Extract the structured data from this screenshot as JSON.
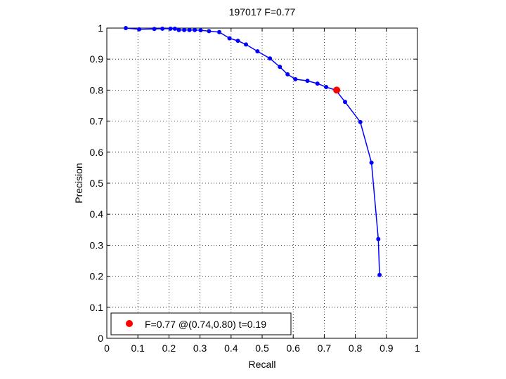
{
  "chart_data": {
    "type": "line",
    "title": "197017 F=0.77",
    "xlabel": "Recall",
    "ylabel": "Precision",
    "xlim": [
      0,
      1
    ],
    "ylim": [
      0,
      1
    ],
    "grid": true,
    "legend_position": "bottom-left",
    "x_ticks": [
      "0",
      "0.1",
      "0.2",
      "0.3",
      "0.4",
      "0.5",
      "0.6",
      "0.7",
      "0.8",
      "0.9",
      "1"
    ],
    "y_ticks": [
      "0",
      "0.1",
      "0.2",
      "0.3",
      "0.4",
      "0.5",
      "0.6",
      "0.7",
      "0.8",
      "0.9",
      "1"
    ],
    "series": [
      {
        "color": "#0000ff",
        "x": [
          0.061,
          0.104,
          0.153,
          0.179,
          0.205,
          0.219,
          0.232,
          0.249,
          0.266,
          0.283,
          0.302,
          0.329,
          0.362,
          0.395,
          0.422,
          0.448,
          0.485,
          0.525,
          0.557,
          0.582,
          0.607,
          0.646,
          0.678,
          0.706,
          0.737,
          0.767,
          0.816,
          0.852,
          0.874,
          0.878
        ],
        "y": [
          1.0,
          0.996,
          0.997,
          0.998,
          0.998,
          0.998,
          0.994,
          0.994,
          0.994,
          0.994,
          0.993,
          0.99,
          0.987,
          0.967,
          0.959,
          0.947,
          0.925,
          0.902,
          0.875,
          0.851,
          0.835,
          0.83,
          0.821,
          0.81,
          0.8,
          0.762,
          0.697,
          0.566,
          0.32,
          0.204
        ]
      }
    ],
    "highlight_point": {
      "x": 0.74,
      "y": 0.8,
      "color": "#ff0000"
    },
    "legend_label": "F=0.77 @(0.74,0.80) t=0.19"
  }
}
